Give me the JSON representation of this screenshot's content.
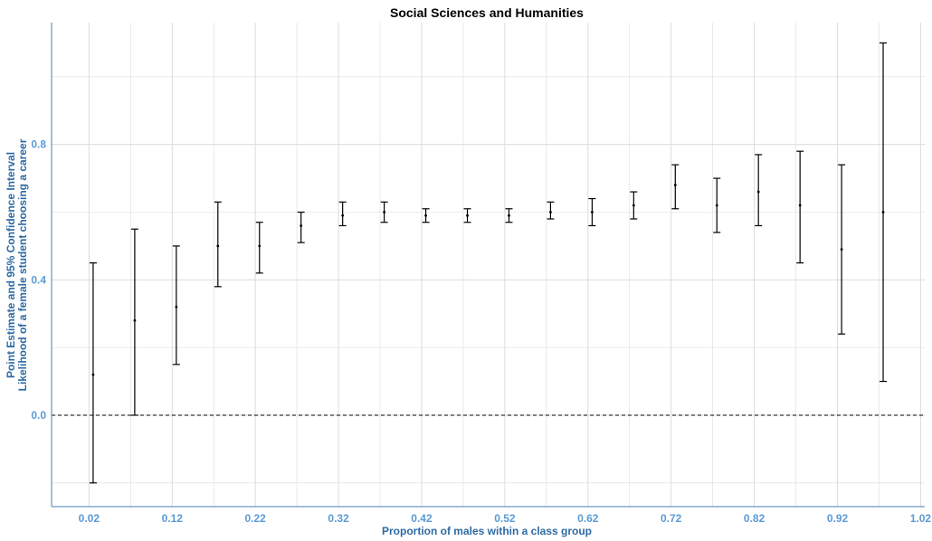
{
  "chart_data": {
    "type": "errorbar",
    "title": "Social Sciences and Humanities",
    "xlabel": "Proportion of males within a class group",
    "ylabel_lines": [
      "Point Estimate and 95% Confidence Interval",
      "Likelihood of a female student choosing a career"
    ],
    "xlim": [
      -0.025,
      1.025
    ],
    "ylim": [
      -0.27,
      1.16
    ],
    "x_ticks": [
      0.02,
      0.12,
      0.22,
      0.32,
      0.42,
      0.52,
      0.62,
      0.72,
      0.82,
      0.92,
      1.02
    ],
    "x_tick_labels": [
      "0.02",
      "0.12",
      "0.22",
      "0.32",
      "0.42",
      "0.52",
      "0.62",
      "0.72",
      "0.82",
      "0.92",
      "1.02"
    ],
    "y_ticks": [
      0.0,
      0.4,
      0.8
    ],
    "y_tick_labels": [
      "0.0",
      "0.4",
      "0.8"
    ],
    "reference_line": {
      "y": 0.0,
      "style": "dashed"
    },
    "grid": true,
    "points": [
      {
        "x": 0.025,
        "estimate": 0.12,
        "lower": -0.2,
        "upper": 0.45
      },
      {
        "x": 0.075,
        "estimate": 0.28,
        "lower": 0.0,
        "upper": 0.55
      },
      {
        "x": 0.125,
        "estimate": 0.32,
        "lower": 0.15,
        "upper": 0.5
      },
      {
        "x": 0.175,
        "estimate": 0.5,
        "lower": 0.38,
        "upper": 0.63
      },
      {
        "x": 0.225,
        "estimate": 0.5,
        "lower": 0.42,
        "upper": 0.57
      },
      {
        "x": 0.275,
        "estimate": 0.56,
        "lower": 0.51,
        "upper": 0.6
      },
      {
        "x": 0.325,
        "estimate": 0.59,
        "lower": 0.56,
        "upper": 0.63
      },
      {
        "x": 0.375,
        "estimate": 0.6,
        "lower": 0.57,
        "upper": 0.63
      },
      {
        "x": 0.425,
        "estimate": 0.59,
        "lower": 0.57,
        "upper": 0.61
      },
      {
        "x": 0.475,
        "estimate": 0.59,
        "lower": 0.57,
        "upper": 0.61
      },
      {
        "x": 0.525,
        "estimate": 0.59,
        "lower": 0.57,
        "upper": 0.61
      },
      {
        "x": 0.575,
        "estimate": 0.6,
        "lower": 0.58,
        "upper": 0.63
      },
      {
        "x": 0.625,
        "estimate": 0.6,
        "lower": 0.56,
        "upper": 0.64
      },
      {
        "x": 0.675,
        "estimate": 0.62,
        "lower": 0.58,
        "upper": 0.66
      },
      {
        "x": 0.725,
        "estimate": 0.68,
        "lower": 0.61,
        "upper": 0.74
      },
      {
        "x": 0.775,
        "estimate": 0.62,
        "lower": 0.54,
        "upper": 0.7
      },
      {
        "x": 0.825,
        "estimate": 0.66,
        "lower": 0.56,
        "upper": 0.77
      },
      {
        "x": 0.875,
        "estimate": 0.62,
        "lower": 0.45,
        "upper": 0.78
      },
      {
        "x": 0.925,
        "estimate": 0.49,
        "lower": 0.24,
        "upper": 0.74
      },
      {
        "x": 0.975,
        "estimate": 0.6,
        "lower": 0.1,
        "upper": 1.1
      }
    ],
    "colors": {
      "tick_label": "#5b9bd5",
      "axis_title": "#2e6aa3",
      "axis_line": "#4a7fb5",
      "grid": "#dcdcdc",
      "marks": "#000000"
    }
  }
}
